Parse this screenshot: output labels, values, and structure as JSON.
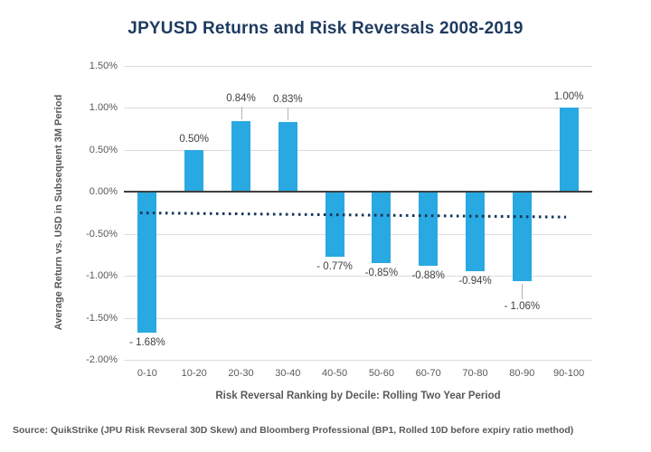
{
  "title": "JPYUSD Returns and Risk Reversals 2008-2019",
  "source": "Source: QuikStrike (JPU Risk Revseral 30D Skew) and Bloomberg Professional (BP1, Rolled 10D before expiry ratio method)",
  "chart_data": {
    "type": "bar",
    "title": "JPYUSD Returns and Risk Reversals 2008-2019",
    "categories": [
      "0-10",
      "10-20",
      "20-30",
      "30-40",
      "40-50",
      "50-60",
      "60-70",
      "70-80",
      "80-90",
      "90-100"
    ],
    "values": [
      -1.68,
      0.5,
      0.84,
      0.83,
      -0.77,
      -0.85,
      -0.88,
      -0.94,
      -1.06,
      1.0
    ],
    "point_labels": [
      "- 1.68%",
      "0.50%",
      "0.84%",
      "0.83%",
      "- 0.77%",
      "-0.85%",
      "-0.88%",
      "-0.94%",
      "- 1.06%",
      "1.00%"
    ],
    "label_leader_lines": [
      false,
      false,
      true,
      true,
      false,
      false,
      false,
      false,
      true,
      false
    ],
    "xlabel": "Risk Reversal Ranking by Decile: Rolling Two Year Period",
    "ylabel": "Average Return vs. USD in Subsequent 3M Period",
    "ylim": [
      -2.0,
      1.5
    ],
    "ytick_labels": [
      "1.50%",
      "1.00%",
      "0.50%",
      "0.00%",
      "-0.50%",
      "-1.00%",
      "-1.50%",
      "-2.00%"
    ],
    "ytick_values": [
      1.5,
      1.0,
      0.5,
      0.0,
      -0.5,
      -1.0,
      -1.5,
      -2.0
    ],
    "grid": true,
    "legend": false,
    "trendline": {
      "style": "dotted",
      "start_value": -0.25,
      "end_value": -0.3
    },
    "colors": {
      "bar": "#29a9e1",
      "trend": "#17365d",
      "grid": "#dcdcdc",
      "zero_line": "#3f3f3f",
      "title": "#1e3a5f",
      "axis_text": "#595959",
      "data_label": "#404040"
    }
  }
}
